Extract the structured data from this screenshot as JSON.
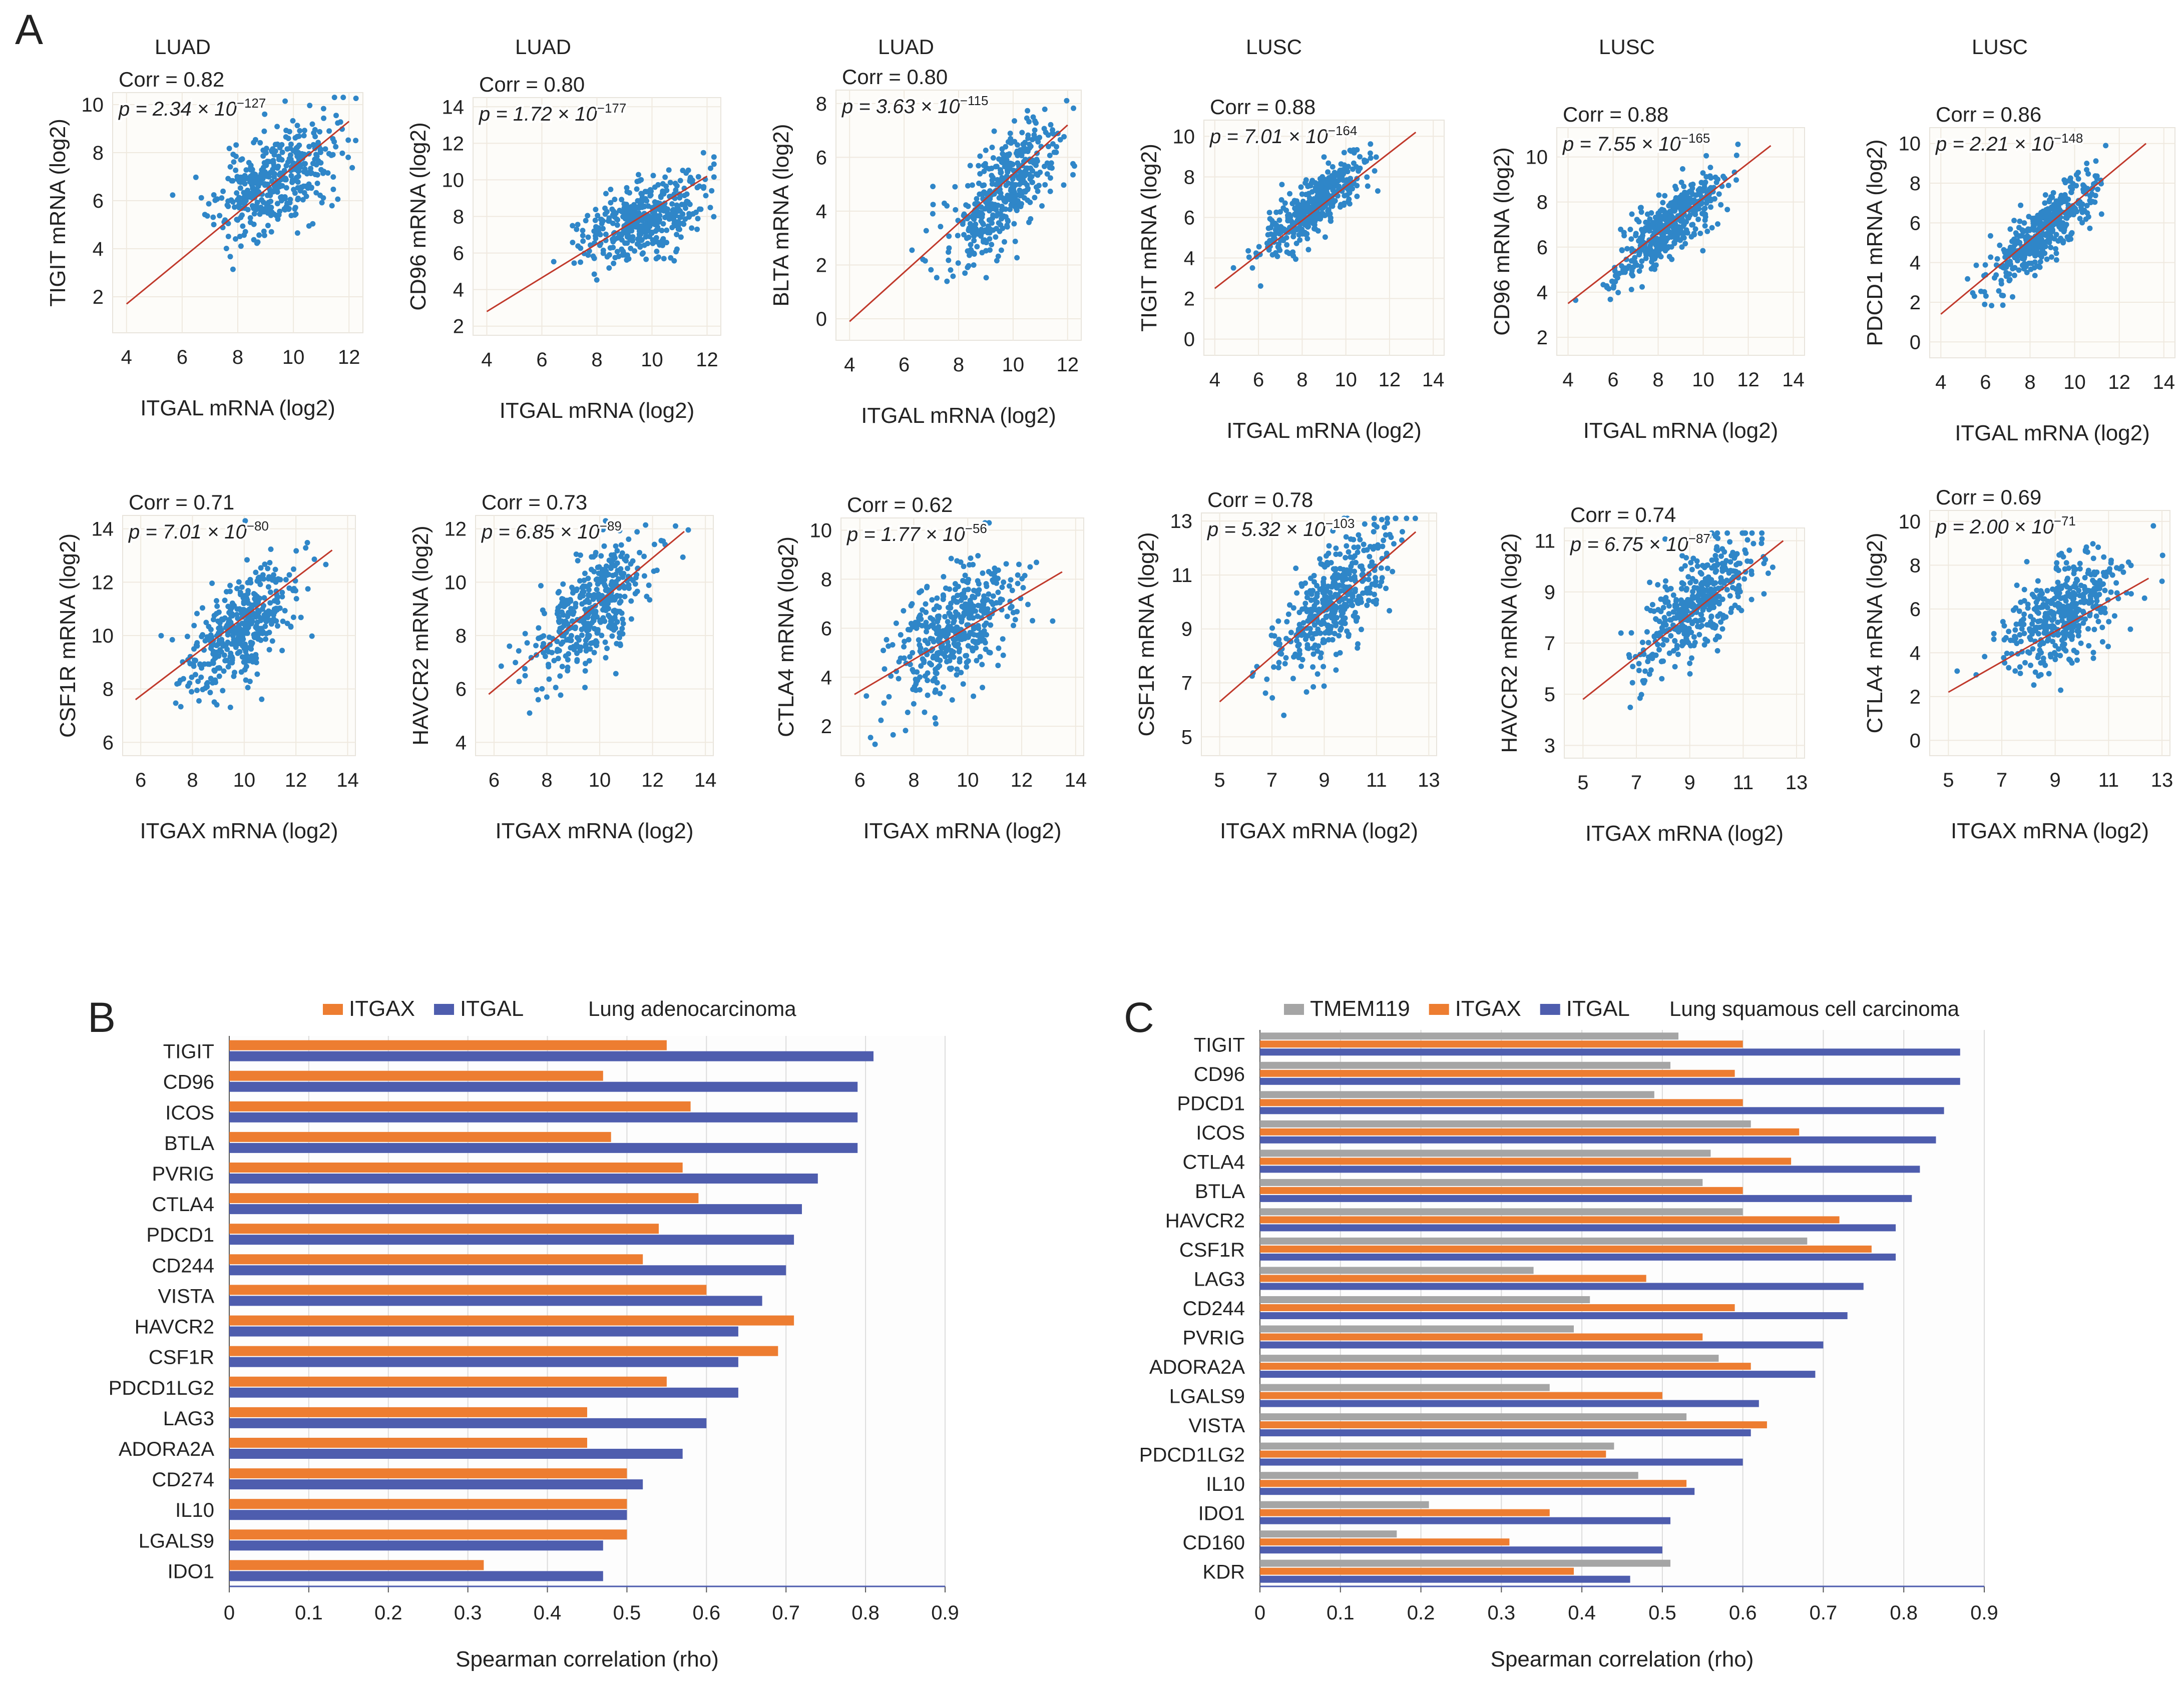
{
  "panels": {
    "A": "A",
    "B": "B",
    "C": "C"
  },
  "chart_data": [
    {
      "id": "a1",
      "type": "scatter",
      "title": "LUAD",
      "xlabel": "ITGAL mRNA (log2)",
      "ylabel": "TIGIT mRNA (log2)",
      "xlim": [
        3.5,
        12.5
      ],
      "ylim": [
        0.5,
        10.5
      ],
      "xticks": [
        4,
        6,
        8,
        10,
        12
      ],
      "yticks": [
        2,
        4,
        6,
        8,
        10
      ],
      "corr": "Corr = 0.82",
      "p_text": "p = 2.34 × 10",
      "p_exp": "−127",
      "fit": [
        [
          4,
          1.7
        ],
        [
          12,
          9.3
        ]
      ],
      "center": [
        9.3,
        6.8
      ],
      "spread": [
        1.05,
        0.55,
        1.0
      ],
      "n": 420,
      "seed": 11
    },
    {
      "id": "a2",
      "type": "scatter",
      "title": "LUAD",
      "xlabel": "ITGAL mRNA (log2)",
      "ylabel": "CD96 mRNA (log2)",
      "xlim": [
        3.5,
        12.5
      ],
      "ylim": [
        1.5,
        14.5
      ],
      "xticks": [
        4,
        6,
        8,
        10,
        12
      ],
      "yticks": [
        2,
        4,
        6,
        8,
        10,
        12,
        14
      ],
      "corr": "Corr = 0.80",
      "p_text": "p = 1.72 × 10",
      "p_exp": "−177",
      "fit": [
        [
          4,
          2.8
        ],
        [
          12,
          10.2
        ]
      ],
      "center": [
        9.7,
        7.8
      ],
      "spread": [
        1.05,
        0.55,
        0.95
      ],
      "n": 420,
      "seed": 12
    },
    {
      "id": "a3",
      "type": "scatter",
      "title": "LUAD",
      "xlabel": "ITGAL mRNA (log2)",
      "ylabel": "BLTA mRNA (log2)",
      "xlim": [
        3.5,
        12.5
      ],
      "ylim": [
        -0.8,
        8.5
      ],
      "xticks": [
        4,
        6,
        8,
        10,
        12
      ],
      "yticks": [
        0,
        2,
        4,
        6,
        8
      ],
      "corr": "Corr = 0.80",
      "p_text": "p = 3.63 × 10",
      "p_exp": "−115",
      "fit": [
        [
          4,
          -0.1
        ],
        [
          12,
          7.2
        ]
      ],
      "center": [
        9.5,
        4.6
      ],
      "spread": [
        1.05,
        0.9,
        0.95
      ],
      "n": 420,
      "seed": 13
    },
    {
      "id": "a4",
      "type": "scatter",
      "title": "LUSC",
      "xlabel": "ITGAL mRNA (log2)",
      "ylabel": "TIGIT mRNA (log2)",
      "xlim": [
        3.5,
        14.5
      ],
      "ylim": [
        -0.8,
        10.8
      ],
      "xticks": [
        4,
        6,
        8,
        10,
        12,
        14
      ],
      "yticks": [
        0,
        2,
        4,
        6,
        8,
        10
      ],
      "corr": "Corr = 0.88",
      "p_text": "p = 7.01 × 10",
      "p_exp": "−164",
      "fit": [
        [
          4,
          2.5
        ],
        [
          13.2,
          10.2
        ]
      ],
      "center": [
        8.5,
        6.5
      ],
      "spread": [
        1.2,
        0.84,
        0.7
      ],
      "n": 420,
      "seed": 14
    },
    {
      "id": "a5",
      "type": "scatter",
      "title": "LUSC",
      "xlabel": "ITGAL mRNA (log2)",
      "ylabel": "CD96 mRNA (log2)",
      "xlim": [
        3.5,
        14.5
      ],
      "ylim": [
        1.2,
        11.3
      ],
      "xticks": [
        4,
        6,
        8,
        10,
        12,
        14
      ],
      "yticks": [
        2,
        4,
        6,
        8,
        10
      ],
      "corr": "Corr = 0.88",
      "p_text": "p = 7.55 × 10",
      "p_exp": "−165",
      "fit": [
        [
          4,
          3.5
        ],
        [
          13,
          10.5
        ]
      ],
      "center": [
        8.5,
        7
      ],
      "spread": [
        1.2,
        0.78,
        0.7
      ],
      "n": 420,
      "seed": 15
    },
    {
      "id": "a6",
      "type": "scatter",
      "title": "LUSC",
      "xlabel": "ITGAL mRNA (log2)",
      "ylabel": "PDCD1 mRNA (log2)",
      "xlim": [
        3.5,
        14.5
      ],
      "ylim": [
        -0.8,
        10.8
      ],
      "xticks": [
        4,
        6,
        8,
        10,
        12,
        14
      ],
      "yticks": [
        0,
        2,
        4,
        6,
        8,
        10
      ],
      "corr": "Corr = 0.86",
      "p_text": "p = 2.21 × 10",
      "p_exp": "−148",
      "fit": [
        [
          4,
          1.4
        ],
        [
          13.2,
          10
        ]
      ],
      "center": [
        8.6,
        5.6
      ],
      "spread": [
        1.2,
        0.93,
        0.8
      ],
      "n": 420,
      "seed": 16
    },
    {
      "id": "b1",
      "type": "scatter",
      "title": "",
      "xlabel": "ITGAX mRNA (log2)",
      "ylabel": "CSF1R mRNA (log2)",
      "xlim": [
        5.3,
        14.3
      ],
      "ylim": [
        5.5,
        14.5
      ],
      "xticks": [
        6,
        8,
        10,
        12,
        14
      ],
      "yticks": [
        6,
        8,
        10,
        12,
        14
      ],
      "corr": "Corr = 0.71",
      "p_text": "p = 7.01 × 10",
      "p_exp": "−80",
      "fit": [
        [
          5.8,
          7.6
        ],
        [
          13.4,
          13.2
        ]
      ],
      "center": [
        9.9,
        10.3
      ],
      "spread": [
        1.1,
        0.74,
        0.95
      ],
      "n": 420,
      "seed": 21
    },
    {
      "id": "b2",
      "type": "scatter",
      "title": "",
      "xlabel": "ITGAX mRNA (log2)",
      "ylabel": "HAVCR2 mRNA (log2)",
      "xlim": [
        5.3,
        14.3
      ],
      "ylim": [
        3.5,
        12.5
      ],
      "xticks": [
        6,
        8,
        10,
        12,
        14
      ],
      "yticks": [
        4,
        6,
        8,
        10,
        12
      ],
      "corr": "Corr = 0.73",
      "p_text": "p = 6.85 × 10",
      "p_exp": "−89",
      "fit": [
        [
          5.8,
          5.8
        ],
        [
          13.2,
          11.9
        ]
      ],
      "center": [
        9.7,
        9
      ],
      "spread": [
        1.1,
        0.82,
        0.95
      ],
      "n": 420,
      "seed": 22
    },
    {
      "id": "b3",
      "type": "scatter",
      "title": "",
      "xlabel": "ITGAX mRNA (log2)",
      "ylabel": "CTLA4 mRNA (log2)",
      "xlim": [
        5.3,
        14.3
      ],
      "ylim": [
        0.8,
        10.5
      ],
      "xticks": [
        6,
        8,
        10,
        12,
        14
      ],
      "yticks": [
        2,
        4,
        6,
        8,
        10
      ],
      "corr": "Corr = 0.62",
      "p_text": "p = 1.77 × 10",
      "p_exp": "−56",
      "fit": [
        [
          5.8,
          3.3
        ],
        [
          13.5,
          8.3
        ]
      ],
      "center": [
        9.4,
        5.8
      ],
      "spread": [
        1.1,
        0.65,
        1.2
      ],
      "n": 420,
      "seed": 23
    },
    {
      "id": "b4",
      "type": "scatter",
      "title": "",
      "xlabel": "ITGAX mRNA (log2)",
      "ylabel": "CSF1R mRNA (log2)",
      "xlim": [
        4.3,
        13.3
      ],
      "ylim": [
        4.3,
        13.3
      ],
      "xticks": [
        5,
        7,
        9,
        11,
        13
      ],
      "yticks": [
        5,
        7,
        9,
        11,
        13
      ],
      "corr": "Corr = 0.78",
      "p_text": "p = 5.32 × 10",
      "p_exp": "−103",
      "fit": [
        [
          5,
          6.3
        ],
        [
          12.5,
          12.6
        ]
      ],
      "center": [
        9.3,
        10
      ],
      "spread": [
        1.1,
        0.84,
        0.95
      ],
      "n": 420,
      "seed": 24
    },
    {
      "id": "b5",
      "type": "scatter",
      "title": "",
      "xlabel": "ITGAX mRNA (log2)",
      "ylabel": "HAVCR2 mRNA (log2)",
      "xlim": [
        4.3,
        13.3
      ],
      "ylim": [
        2.5,
        11.5
      ],
      "xticks": [
        5,
        7,
        9,
        11,
        13
      ],
      "yticks": [
        3,
        5,
        7,
        9,
        11
      ],
      "corr": "Corr = 0.74",
      "p_text": "p = 6.75 × 10",
      "p_exp": "−87",
      "fit": [
        [
          5,
          4.8
        ],
        [
          12.5,
          11
        ]
      ],
      "center": [
        9.3,
        8.5
      ],
      "spread": [
        1.1,
        0.83,
        0.95
      ],
      "n": 420,
      "seed": 25
    },
    {
      "id": "b6",
      "type": "scatter",
      "title": "",
      "xlabel": "ITGAX mRNA (log2)",
      "ylabel": "CTLA4 mRNA (log2)",
      "xlim": [
        4.3,
        13.3
      ],
      "ylim": [
        -0.7,
        10.5
      ],
      "xticks": [
        5,
        7,
        9,
        11,
        13
      ],
      "yticks": [
        0,
        2,
        4,
        6,
        8,
        10
      ],
      "corr": "Corr = 0.69",
      "p_text": "p = 2.00 × 10",
      "p_exp": "−71",
      "fit": [
        [
          5,
          2.2
        ],
        [
          12.5,
          7.4
        ]
      ],
      "center": [
        9.3,
        5.8
      ],
      "spread": [
        1.1,
        0.7,
        1.1
      ],
      "n": 420,
      "seed": 26
    },
    {
      "id": "B",
      "type": "bar",
      "orientation": "horizontal",
      "title": "Lung adenocarcinoma",
      "xlabel": "Spearman correlation (rho)",
      "xlim": [
        0,
        0.9
      ],
      "xticks": [
        "0",
        "0.1",
        "0.2",
        "0.3",
        "0.4",
        "0.5",
        "0.6",
        "0.7",
        "0.8",
        "0.9"
      ],
      "categories": [
        "TIGIT",
        "CD96",
        "ICOS",
        "BTLA",
        "PVRIG",
        "CTLA4",
        "PDCD1",
        "CD244",
        "VISTA",
        "HAVCR2",
        "CSF1R",
        "PDCD1LG2",
        "LAG3",
        "ADORA2A",
        "CD274",
        "IL10",
        "LGALS9",
        "IDO1"
      ],
      "series": [
        {
          "name": "ITGAX",
          "color": "#ED7D31",
          "values": [
            0.55,
            0.47,
            0.58,
            0.48,
            0.57,
            0.59,
            0.54,
            0.52,
            0.6,
            0.71,
            0.69,
            0.55,
            0.45,
            0.45,
            0.5,
            0.5,
            0.5,
            0.32
          ]
        },
        {
          "name": "ITGAL",
          "color": "#4E5DAE",
          "values": [
            0.81,
            0.79,
            0.79,
            0.79,
            0.74,
            0.72,
            0.71,
            0.7,
            0.67,
            0.64,
            0.64,
            0.64,
            0.6,
            0.57,
            0.52,
            0.5,
            0.47,
            0.47
          ]
        }
      ]
    },
    {
      "id": "C",
      "type": "bar",
      "orientation": "horizontal",
      "title": "Lung squamous cell carcinoma",
      "xlabel": "Spearman correlation (rho)",
      "xlim": [
        0,
        0.9
      ],
      "xticks": [
        "0",
        "0.1",
        "0.2",
        "0.3",
        "0.4",
        "0.5",
        "0.6",
        "0.7",
        "0.8",
        "0.9"
      ],
      "categories": [
        "TIGIT",
        "CD96",
        "PDCD1",
        "ICOS",
        "CTLA4",
        "BTLA",
        "HAVCR2",
        "CSF1R",
        "LAG3",
        "CD244",
        "PVRIG",
        "ADORA2A",
        "LGALS9",
        "VISTA",
        "PDCD1LG2",
        "IL10",
        "IDO1",
        "CD160",
        "KDR"
      ],
      "series": [
        {
          "name": "TMEM119",
          "color": "#A5A5A5",
          "values": [
            0.52,
            0.51,
            0.49,
            0.61,
            0.56,
            0.55,
            0.6,
            0.68,
            0.34,
            0.41,
            0.39,
            0.57,
            0.36,
            0.53,
            0.44,
            0.47,
            0.21,
            0.17,
            0.51
          ]
        },
        {
          "name": "ITGAX",
          "color": "#ED7D31",
          "values": [
            0.6,
            0.59,
            0.6,
            0.67,
            0.66,
            0.6,
            0.72,
            0.76,
            0.48,
            0.59,
            0.55,
            0.61,
            0.5,
            0.63,
            0.43,
            0.53,
            0.36,
            0.31,
            0.39
          ]
        },
        {
          "name": "ITGAL",
          "color": "#4E5DAE",
          "values": [
            0.87,
            0.87,
            0.85,
            0.84,
            0.82,
            0.81,
            0.79,
            0.79,
            0.75,
            0.73,
            0.7,
            0.69,
            0.62,
            0.61,
            0.6,
            0.54,
            0.51,
            0.5,
            0.46
          ]
        }
      ]
    }
  ]
}
